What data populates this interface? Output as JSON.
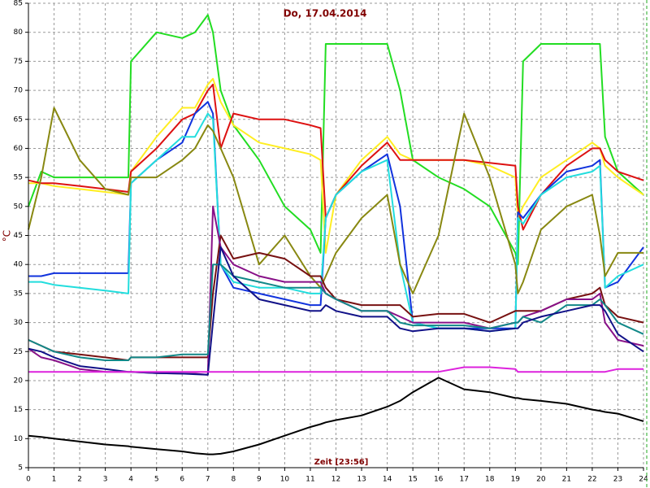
{
  "chart_data": {
    "type": "line",
    "title": "Do, 17.04.2014",
    "x_label": "Zeit [23:56]",
    "y_label": "°C",
    "xlim": [
      0,
      24
    ],
    "ylim": [
      5,
      85
    ],
    "xticks": [
      0,
      1,
      2,
      3,
      4,
      5,
      6,
      7,
      8,
      9,
      10,
      11,
      12,
      13,
      14,
      15,
      16,
      17,
      18,
      19,
      20,
      21,
      22,
      23,
      24
    ],
    "yticks": [
      5,
      10,
      15,
      20,
      25,
      30,
      35,
      40,
      45,
      50,
      55,
      60,
      65,
      70,
      75,
      80,
      85
    ],
    "grid": true,
    "x": [
      0,
      0.5,
      1,
      2,
      3,
      3.9,
      4,
      5,
      6,
      6.5,
      7,
      7.2,
      7.5,
      8,
      9,
      10,
      11,
      11.4,
      11.6,
      12,
      13,
      14,
      14.5,
      15,
      16,
      17,
      18,
      19,
      19.1,
      19.3,
      20,
      21,
      22,
      22.3,
      22.5,
      23,
      24
    ],
    "series": [
      {
        "color": "#22dd22",
        "values": [
          50,
          56,
          55,
          55,
          55,
          55,
          75,
          80,
          79,
          80,
          83,
          80,
          70,
          64,
          58,
          50,
          46,
          42,
          78,
          78,
          78,
          78,
          70,
          58,
          55,
          53,
          50,
          42,
          40,
          75,
          78,
          78,
          78,
          78,
          62,
          56,
          52
        ]
      },
      {
        "color": "#ffee22",
        "values": [
          54,
          54,
          53.5,
          53,
          52.5,
          52,
          56,
          62,
          67,
          67,
          71,
          72,
          68,
          64,
          61,
          60,
          59,
          58,
          42,
          52,
          58,
          62,
          59,
          58,
          58,
          58,
          57,
          55,
          48,
          50,
          55,
          58,
          61,
          60,
          57,
          55,
          52
        ]
      },
      {
        "color": "#dd1111",
        "values": [
          54.5,
          54,
          54,
          53.5,
          53,
          52.5,
          56,
          60,
          65,
          66,
          70,
          71,
          60,
          66,
          65,
          65,
          64,
          63.5,
          48,
          52,
          57,
          61,
          58,
          58,
          58,
          58,
          57.5,
          57,
          50,
          46,
          52,
          57,
          60,
          60,
          58,
          56,
          54.5
        ]
      },
      {
        "color": "#1133dd",
        "values": [
          38,
          38,
          38.5,
          38.5,
          38.5,
          38.5,
          54,
          58,
          61,
          66,
          68,
          66,
          40,
          36,
          35,
          34,
          33,
          33,
          48,
          52,
          56,
          59,
          50,
          30,
          29,
          29,
          29,
          29,
          49,
          48,
          52,
          56,
          57,
          58,
          36,
          37,
          43
        ]
      },
      {
        "color": "#22dddd",
        "values": [
          37,
          37,
          36.5,
          36,
          35.5,
          35,
          54,
          58,
          62,
          62,
          66,
          65,
          40,
          37,
          36,
          36,
          35,
          35,
          48,
          52,
          56,
          58,
          40,
          30,
          29,
          29,
          28.5,
          29,
          48,
          47,
          52,
          55,
          56,
          57,
          36,
          38,
          40
        ]
      },
      {
        "color": "#888811",
        "values": [
          46,
          55,
          67,
          58,
          53,
          52,
          55,
          55,
          58,
          60,
          64,
          63,
          60,
          55,
          40,
          45,
          38,
          36,
          38,
          42,
          48,
          52,
          40,
          35,
          45,
          66,
          55,
          40,
          35,
          37,
          46,
          50,
          52,
          45,
          38,
          42,
          42
        ]
      },
      {
        "color": "#771111",
        "values": [
          27,
          26,
          25,
          24.5,
          24,
          23.5,
          24,
          24,
          24,
          24,
          24,
          35,
          45,
          41,
          42,
          41,
          38,
          38,
          36,
          34,
          33,
          33,
          33,
          31,
          31.5,
          31.5,
          30,
          32,
          32,
          32,
          32,
          34,
          35,
          36,
          33,
          31,
          30
        ]
      },
      {
        "color": "#881188",
        "values": [
          25.5,
          24,
          23.5,
          22,
          21.5,
          21.5,
          21.5,
          21.3,
          21.2,
          21.2,
          21,
          50,
          43,
          40,
          38,
          37,
          37,
          37,
          35,
          34,
          32,
          32,
          31,
          30,
          30,
          30,
          29,
          30,
          30,
          31,
          32,
          34,
          34,
          35,
          30,
          27,
          26
        ]
      },
      {
        "color": "#118888",
        "values": [
          27,
          26,
          25,
          24,
          23.5,
          23.5,
          24,
          24,
          24.5,
          24.5,
          24.5,
          40,
          40,
          38,
          37,
          36,
          36,
          36,
          35,
          34,
          32,
          32,
          30,
          29.5,
          29.5,
          29.5,
          29,
          30,
          30,
          31,
          30,
          33,
          33,
          34,
          33,
          30,
          28
        ]
      },
      {
        "color": "#111188",
        "values": [
          25.5,
          25,
          24,
          22.5,
          22,
          21.5,
          21.5,
          21.3,
          21.2,
          21.1,
          21,
          30,
          43,
          38,
          34,
          33,
          32,
          32,
          33,
          32,
          31,
          31,
          29,
          28.5,
          29,
          29,
          28.5,
          29,
          29,
          30,
          31,
          32,
          33,
          33,
          32,
          28,
          25
        ]
      },
      {
        "color": "#dd22dd",
        "values": [
          21.5,
          21.5,
          21.5,
          21.5,
          21.5,
          21.5,
          21.5,
          21.5,
          21.5,
          21.5,
          21.5,
          21.5,
          21.5,
          21.5,
          21.5,
          21.5,
          21.5,
          21.5,
          21.5,
          21.5,
          21.5,
          21.5,
          21.5,
          21.5,
          21.5,
          22.3,
          22.3,
          22,
          21.5,
          21.5,
          21.5,
          21.5,
          21.5,
          21.5,
          21.5,
          22,
          22
        ]
      },
      {
        "color": "#000000",
        "values": [
          10.5,
          10.3,
          10,
          9.5,
          9,
          8.7,
          8.6,
          8.2,
          7.8,
          7.5,
          7.3,
          7.3,
          7.4,
          7.8,
          9,
          10.5,
          12,
          12.5,
          12.8,
          13.2,
          14,
          15.5,
          16.5,
          18,
          20.5,
          18.5,
          18,
          17,
          17,
          16.8,
          16.5,
          16,
          15,
          14.8,
          14.6,
          14.3,
          13
        ]
      }
    ]
  }
}
